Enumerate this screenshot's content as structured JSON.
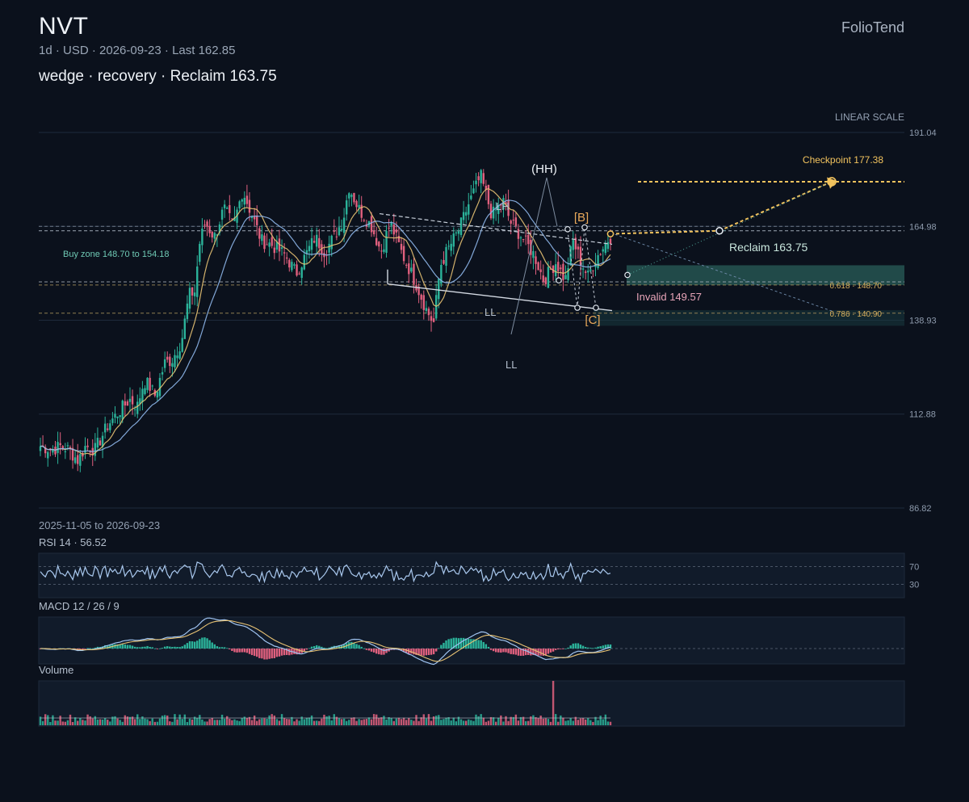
{
  "header": {
    "ticker": "NVT",
    "subinfo": "1d · USD · 2026-09-23 · Last 162.85",
    "headline": "wedge · recovery · Reclaim 163.75",
    "brand": "FolioTend",
    "scale_label": "LINEAR SCALE",
    "range_label": "2025-11-05 to 2026-09-23"
  },
  "colors": {
    "background": "#0b111c",
    "up": "#2bb39a",
    "down": "#e0607e",
    "ma_fast": "#e8c374",
    "ma_slow": "#8fb8ec",
    "accent": "#f2c35e",
    "zone": "#2a5e58"
  },
  "chart_data": [
    {
      "type": "candlestick",
      "title": "NVT",
      "ylim": [
        86.82,
        191.04
      ],
      "yticks": [
        "191.04",
        "164.98",
        "138.93",
        "112.88",
        "86.82"
      ],
      "x_range": [
        "2025-11-05",
        "2026-09-23"
      ],
      "bars": 230,
      "anchors": [
        [
          0,
          104
        ],
        [
          12,
          103
        ],
        [
          22,
          104
        ],
        [
          30,
          103
        ],
        [
          40,
          100
        ],
        [
          48,
          104
        ],
        [
          58,
          103
        ],
        [
          72,
          110
        ],
        [
          85,
          114
        ],
        [
          95,
          117
        ],
        [
          103,
          115
        ],
        [
          110,
          122
        ],
        [
          115,
          121
        ],
        [
          122,
          118
        ],
        [
          132,
          127
        ],
        [
          140,
          128
        ],
        [
          150,
          133
        ],
        [
          158,
          146
        ],
        [
          165,
          147
        ],
        [
          168,
          159
        ],
        [
          175,
          166
        ],
        [
          185,
          162
        ],
        [
          195,
          170
        ],
        [
          205,
          165
        ],
        [
          215,
          175
        ],
        [
          225,
          168
        ],
        [
          235,
          161
        ],
        [
          245,
          160
        ],
        [
          260,
          157
        ],
        [
          272,
          152
        ],
        [
          282,
          157
        ],
        [
          292,
          162
        ],
        [
          302,
          158
        ],
        [
          312,
          162
        ],
        [
          322,
          167
        ],
        [
          328,
          176
        ],
        [
          338,
          170
        ],
        [
          352,
          165
        ],
        [
          362,
          158
        ],
        [
          372,
          166
        ],
        [
          385,
          157
        ],
        [
          398,
          150
        ],
        [
          410,
          142
        ],
        [
          418,
          138
        ],
        [
          425,
          154
        ],
        [
          432,
          158
        ],
        [
          445,
          164
        ],
        [
          455,
          171
        ],
        [
          468,
          179
        ],
        [
          480,
          168
        ],
        [
          492,
          172
        ],
        [
          500,
          166
        ],
        [
          512,
          162
        ],
        [
          525,
          157
        ],
        [
          535,
          150
        ],
        [
          548,
          155
        ],
        [
          558,
          150
        ],
        [
          566,
          161
        ],
        [
          575,
          155
        ],
        [
          582,
          151
        ],
        [
          590,
          156
        ],
        [
          598,
          159
        ],
        [
          605,
          162
        ]
      ],
      "patterns": {
        "wedge_label": "wedge",
        "swing_labels": [
          "LH",
          "(HH)",
          "LL",
          "LL"
        ],
        "wave_labels": [
          "[B]",
          "[C]"
        ],
        "checkpoint": "Checkpoint 177.38",
        "reclaim": "Reclaim 163.75",
        "invalid": "Invalid 149.57",
        "buy_zone": "Buy zone 148.70 to 154.18",
        "fib_levels": [
          {
            "label": "0.618 · 148.70",
            "value": 148.7
          },
          {
            "label": "0.786 · 140.90",
            "value": 140.9
          }
        ],
        "levels": {
          "checkpoint": 177.38,
          "reclaim": 163.75,
          "invalid": 149.57,
          "zone_low": 148.7,
          "zone_high": 154.18
        }
      },
      "moving_averages": [
        "MA fast (amber)",
        "MA slow (blue)"
      ]
    },
    {
      "type": "line",
      "title": "RSI 14 · 56.52",
      "name": "RSI 14",
      "last": 56.52,
      "levels": [
        "70",
        "30"
      ],
      "ylim": [
        0,
        100
      ]
    },
    {
      "type": "bar",
      "title": "MACD 12 / 26 / 9",
      "name": "MACD",
      "params": [
        12,
        26,
        9
      ]
    },
    {
      "type": "bar",
      "title": "Volume",
      "name": "Volume",
      "spike_index": 206
    }
  ],
  "panels": {
    "rsi": {
      "label": "RSI 14 · 56.52",
      "levels": [
        "70",
        "30"
      ]
    },
    "macd": {
      "label": "MACD 12 / 26 / 9"
    },
    "volume": {
      "label": "Volume"
    }
  }
}
